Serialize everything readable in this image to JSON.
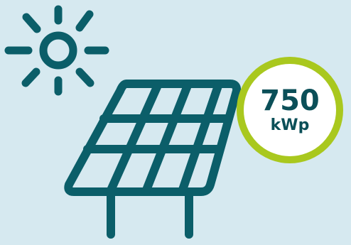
{
  "colors": {
    "background": "#d6e9f0",
    "icon": "#0b5e69",
    "badge_ring": "#a9c81e",
    "badge_fill": "#ffffff",
    "badge_text": "#0b4f58"
  },
  "icons": {
    "sun": "sun-icon",
    "panel": "solar-panel-icon"
  },
  "badge": {
    "value": "750",
    "unit": "kWp"
  }
}
